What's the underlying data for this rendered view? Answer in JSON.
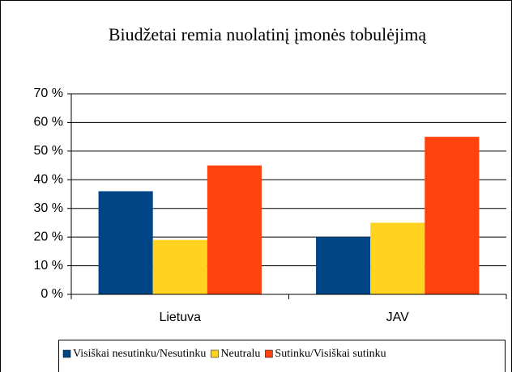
{
  "chart_data": {
    "type": "bar",
    "title": "Biudžetai remia nuolatinį įmonės tobulėjimą",
    "categories": [
      "Lietuva",
      "JAV"
    ],
    "series": [
      {
        "name": "Visiškai nesutinku/Nesutinku",
        "color": "#004586",
        "values": [
          36,
          20
        ]
      },
      {
        "name": "Neutralu",
        "color": "#ffd320",
        "values": [
          19,
          25
        ]
      },
      {
        "name": "Sutinku/Visiškai sutinku",
        "color": "#ff420e",
        "values": [
          45,
          55
        ]
      }
    ],
    "ylim": [
      0,
      70
    ],
    "yticks": [
      {
        "value": 0,
        "label": "0 %"
      },
      {
        "value": 10,
        "label": "10 %"
      },
      {
        "value": 20,
        "label": "20 %"
      },
      {
        "value": 30,
        "label": "30 %"
      },
      {
        "value": 40,
        "label": "40 %"
      },
      {
        "value": 50,
        "label": "50 %"
      },
      {
        "value": 60,
        "label": "60 %"
      },
      {
        "value": 70,
        "label": "70 %"
      }
    ],
    "grid": true,
    "legend": "bottom"
  }
}
